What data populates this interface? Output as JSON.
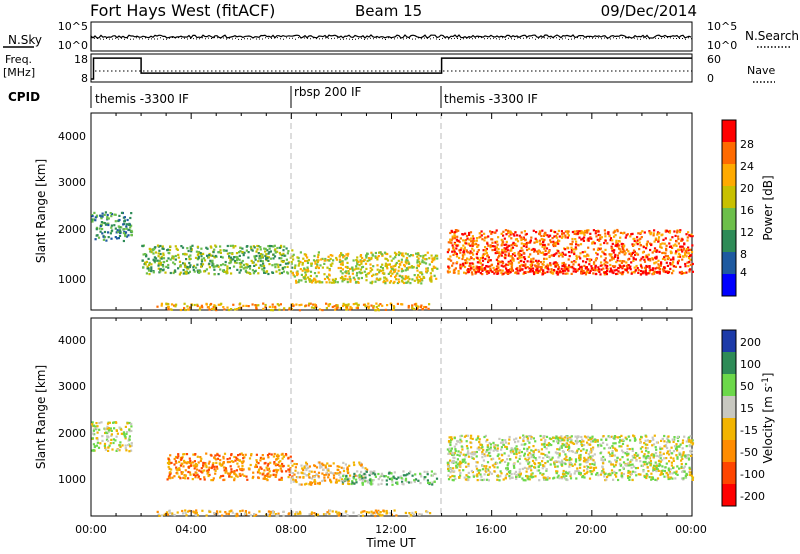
{
  "header": {
    "station": "Fort Hays West (fitACF)",
    "beam": "Beam 15",
    "date": "09/Dec/2014"
  },
  "noise_panel": {
    "left_label": "N.Sky",
    "right_label": "N.Search",
    "left_ticks": [
      "10^5",
      "10^0"
    ],
    "right_ticks": [
      "10^5",
      "10^0"
    ]
  },
  "freq_panel": {
    "left_label_1": "Freq.",
    "left_label_2": "[MHz]",
    "right_label": "Nave",
    "left_ticks": [
      "18",
      "8"
    ],
    "right_ticks": [
      "60",
      "0"
    ],
    "freq_steps": [
      {
        "start_h": 0.0,
        "end_h": 0.1,
        "freq": 8
      },
      {
        "start_h": 0.1,
        "end_h": 2.0,
        "freq": 17.5
      },
      {
        "start_h": 2.0,
        "end_h": 14.0,
        "freq": 10.7
      },
      {
        "start_h": 14.0,
        "end_h": 24.0,
        "freq": 17.5
      }
    ]
  },
  "cpid": {
    "label": "CPID",
    "segments": [
      {
        "start_h": 0,
        "text": "themis -3300 IF"
      },
      {
        "start_h": 8,
        "text": "rbsp 200 IF"
      },
      {
        "start_h": 14,
        "text": "themis -3300 IF"
      }
    ]
  },
  "axes": {
    "ylabel": "Slant Range [km]",
    "xlabel": "Time UT",
    "y_ticks": [
      "1000",
      "2000",
      "3000",
      "4000"
    ],
    "x_ticks": [
      "00:00",
      "04:00",
      "08:00",
      "12:00",
      "16:00",
      "20:00",
      "00:00"
    ]
  },
  "power_colorbar": {
    "label": "Power [dB]",
    "ticks": [
      "4",
      "8",
      "12",
      "16",
      "20",
      "24",
      "28"
    ],
    "colors": [
      "#0000ff",
      "#1e5aa0",
      "#2e8b57",
      "#6cbf4a",
      "#c8c000",
      "#ffaa00",
      "#ff6a00",
      "#ff0000"
    ]
  },
  "velocity_colorbar": {
    "label": "Velocity [m s",
    "label_sup": "-1",
    "label_end": "]",
    "ticks": [
      "200",
      "100",
      "50",
      "15",
      "-15",
      "-50",
      "-100",
      "-200"
    ],
    "colors": [
      "#1c3aa8",
      "#2e8b57",
      "#6cd84a",
      "#c8c8c0",
      "#f2b400",
      "#ff8c00",
      "#ff4500",
      "#ff0000"
    ]
  },
  "chart_data": [
    {
      "type": "heatmap",
      "name": "power",
      "xlim": [
        0,
        24
      ],
      "ylim": [
        180,
        4600
      ],
      "bands": [
        {
          "t0": 0.0,
          "t1": 1.6,
          "r0": 1750,
          "r1": 2400,
          "level": 2
        },
        {
          "t0": 2.0,
          "t1": 8.0,
          "r0": 1000,
          "r1": 1650,
          "level": 3
        },
        {
          "t0": 8.0,
          "t1": 13.8,
          "r0": 800,
          "r1": 1500,
          "level": 4
        },
        {
          "t0": 2.5,
          "t1": 13.5,
          "r0": 200,
          "r1": 350,
          "level": 5
        },
        {
          "t0": 14.2,
          "t1": 24.0,
          "r0": 1000,
          "r1": 2000,
          "level": 6
        },
        {
          "t0": 15.0,
          "t1": 23.0,
          "r0": 1000,
          "r1": 1200,
          "level": 7
        }
      ]
    },
    {
      "type": "heatmap",
      "name": "velocity",
      "xlim": [
        0,
        24
      ],
      "ylim": [
        180,
        4600
      ],
      "bands": [
        {
          "t0": 0.0,
          "t1": 1.6,
          "r0": 1650,
          "r1": 2300,
          "level": 3
        },
        {
          "t0": 3.0,
          "t1": 8.0,
          "r0": 1000,
          "r1": 1600,
          "level": 5
        },
        {
          "t0": 8.0,
          "t1": 11.0,
          "r0": 900,
          "r1": 1400,
          "level": 4
        },
        {
          "t0": 10.0,
          "t1": 13.8,
          "r0": 900,
          "r1": 1200,
          "level": 2
        },
        {
          "t0": 14.2,
          "t1": 24.0,
          "r0": 1000,
          "r1": 2000,
          "level": 3
        },
        {
          "t0": 2.5,
          "t1": 13.5,
          "r0": 200,
          "r1": 330,
          "level": 4
        }
      ]
    }
  ]
}
